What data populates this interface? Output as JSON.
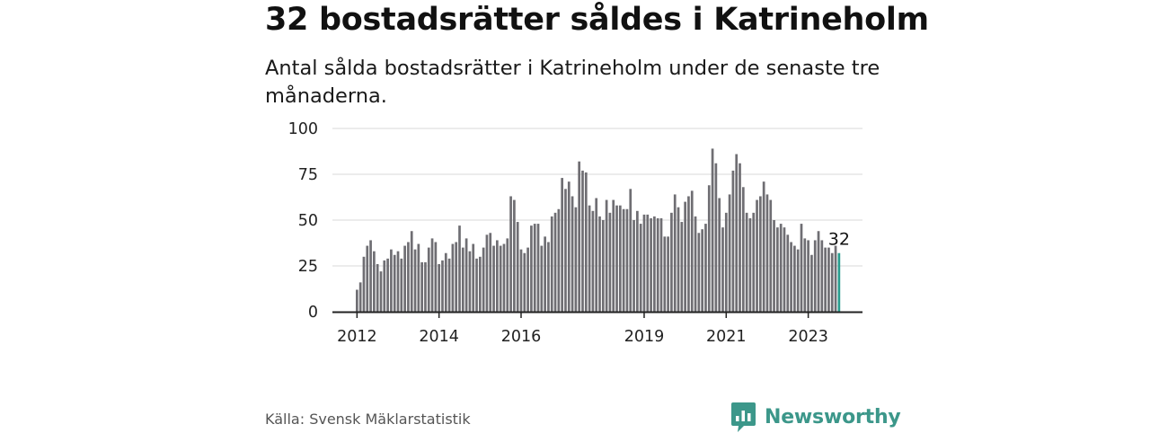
{
  "title": "32 bostadsrätter såldes i Katrineholm",
  "subtitle": "Antal sålda bostadsrätter i Katrineholm under de senaste tre månaderna.",
  "source": "Källa: Svensk Mäklarstatistik",
  "brand": {
    "name": "Newsworthy",
    "icon": "newsworthy-logo-icon",
    "color": "#3c978a"
  },
  "colors": {
    "bar": "#6f6e73",
    "highlight": "#2a9d8f",
    "grid": "#d9d9d9",
    "axis": "#222222"
  },
  "chart_data": {
    "type": "bar",
    "title": "32 bostadsrätter såldes i Katrineholm",
    "xlabel": "",
    "ylabel": "",
    "ylim": [
      0,
      100
    ],
    "yticks": [
      "0",
      "25",
      "50",
      "75",
      "100"
    ],
    "xticks": [
      "2012",
      "2014",
      "2016",
      "2019",
      "2021",
      "2023"
    ],
    "x_start": "2012-01",
    "highlight_last": true,
    "annotation": "32",
    "grid": true,
    "values": [
      12,
      16,
      30,
      36,
      39,
      33,
      26,
      22,
      28,
      29,
      34,
      31,
      33,
      29,
      36,
      38,
      44,
      34,
      37,
      27,
      27,
      35,
      40,
      38,
      26,
      28,
      32,
      29,
      37,
      38,
      47,
      35,
      40,
      33,
      37,
      29,
      30,
      35,
      42,
      43,
      36,
      39,
      36,
      37,
      40,
      63,
      61,
      49,
      34,
      32,
      35,
      47,
      48,
      48,
      36,
      41,
      38,
      52,
      54,
      56,
      73,
      67,
      71,
      63,
      57,
      82,
      77,
      76,
      58,
      55,
      62,
      52,
      50,
      61,
      54,
      61,
      58,
      58,
      56,
      56,
      67,
      50,
      55,
      48,
      53,
      53,
      51,
      52,
      51,
      51,
      41,
      41,
      54,
      64,
      57,
      49,
      60,
      63,
      66,
      52,
      43,
      45,
      48,
      69,
      89,
      81,
      62,
      46,
      54,
      64,
      77,
      86,
      81,
      68,
      54,
      51,
      54,
      61,
      63,
      71,
      64,
      61,
      50,
      46,
      48,
      46,
      42,
      38,
      36,
      34,
      48,
      40,
      39,
      31,
      39,
      44,
      39,
      35,
      35,
      32,
      36,
      32
    ]
  }
}
